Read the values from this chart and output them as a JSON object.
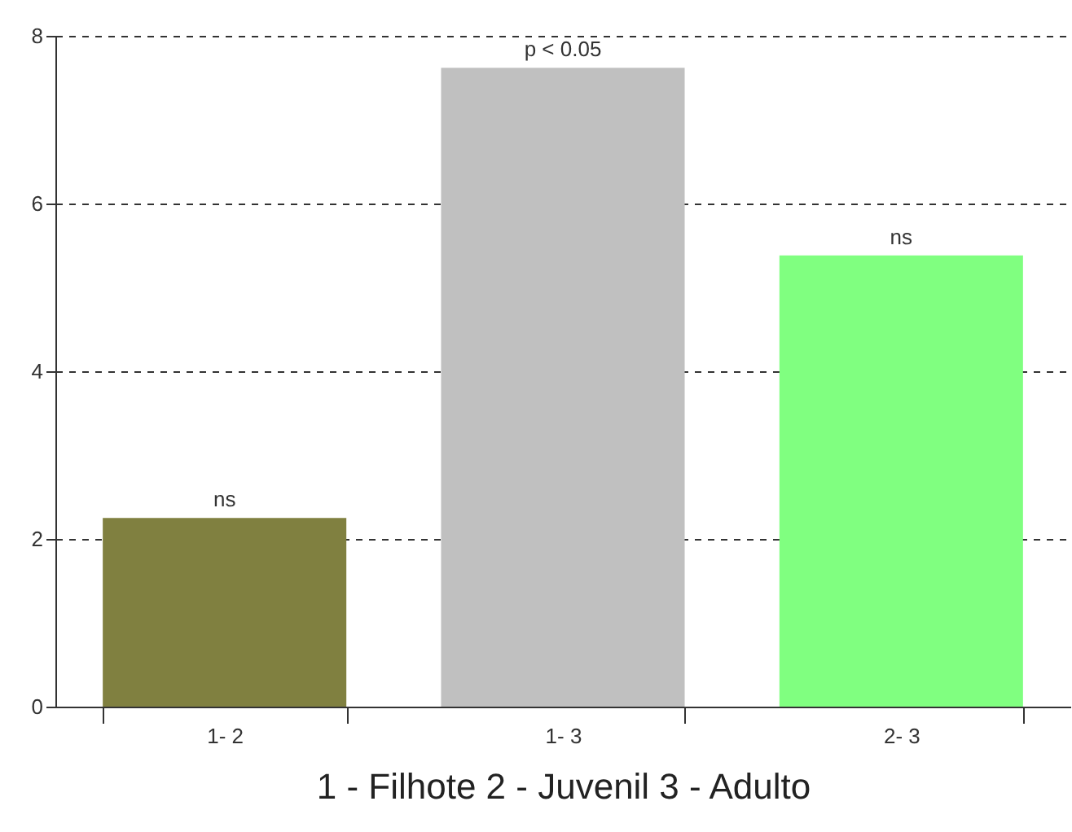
{
  "chart_data": {
    "type": "bar",
    "xlabel": "1 - Filhote 2 - Juvenil 3 - Adulto",
    "categories": [
      "1- 2",
      "1- 3",
      "2- 3"
    ],
    "values": [
      2.25,
      7.62,
      5.38
    ],
    "colors": [
      "#808040",
      "#c0c0c0",
      "#80ff80"
    ],
    "ylim": [
      0,
      8
    ],
    "yticks": [
      0,
      2,
      4,
      6,
      8
    ],
    "grid": "y",
    "annotations": [
      {
        "text": "ns",
        "x": "1- 2",
        "y": 2.25
      },
      {
        "text": "p < 0.05",
        "x": "1- 3",
        "y": 7.62
      },
      {
        "text": "ns",
        "x": "2- 3",
        "y": 5.38
      }
    ]
  }
}
